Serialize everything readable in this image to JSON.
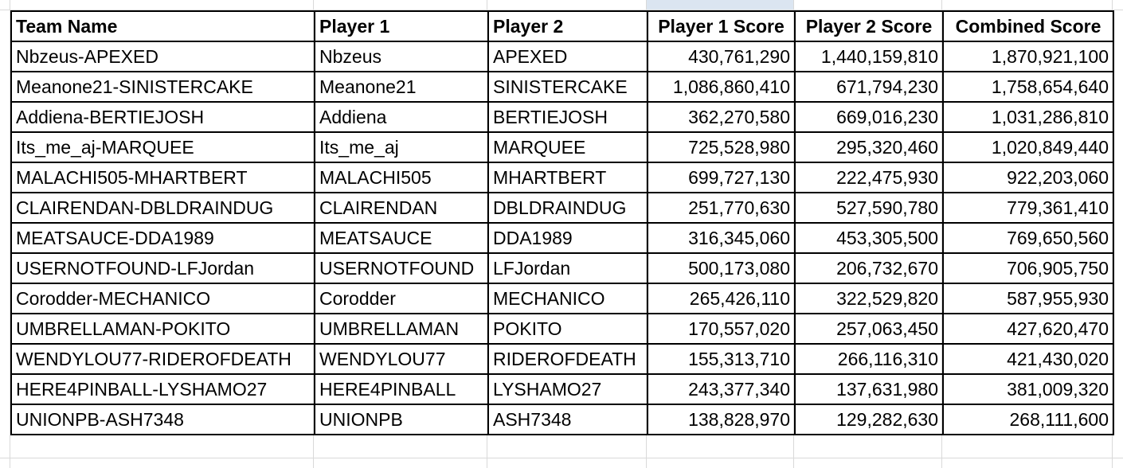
{
  "columns": [
    "Team Name",
    "Player 1",
    "Player 2",
    "Player 1 Score",
    "Player 2 Score",
    "Combined Score"
  ],
  "rows": [
    [
      "Nbzeus-APEXED",
      "Nbzeus",
      "APEXED",
      "430,761,290",
      "1,440,159,810",
      "1,870,921,100"
    ],
    [
      "Meanone21-SINISTERCAKE",
      "Meanone21",
      "SINISTERCAKE",
      "1,086,860,410",
      "671,794,230",
      "1,758,654,640"
    ],
    [
      "Addiena-BERTIEJOSH",
      "Addiena",
      "BERTIEJOSH",
      "362,270,580",
      "669,016,230",
      "1,031,286,810"
    ],
    [
      "Its_me_aj-MARQUEE",
      "Its_me_aj",
      "MARQUEE",
      "725,528,980",
      "295,320,460",
      "1,020,849,440"
    ],
    [
      "MALACHI505-MHARTBERT",
      "MALACHI505",
      "MHARTBERT",
      "699,727,130",
      "222,475,930",
      "922,203,060"
    ],
    [
      "CLAIRENDAN-DBLDRAINDUG",
      "CLAIRENDAN",
      "DBLDRAINDUG",
      "251,770,630",
      "527,590,780",
      "779,361,410"
    ],
    [
      "MEATSAUCE-DDA1989",
      "MEATSAUCE",
      "DDA1989",
      "316,345,060",
      "453,305,500",
      "769,650,560"
    ],
    [
      "USERNOTFOUND-LFJordan",
      "USERNOTFOUND",
      "LFJordan",
      "500,173,080",
      "206,732,670",
      "706,905,750"
    ],
    [
      "Corodder-MECHANICO",
      "Corodder",
      "MECHANICO",
      "265,426,110",
      "322,529,820",
      "587,955,930"
    ],
    [
      "UMBRELLAMAN-POKITO",
      "UMBRELLAMAN",
      "POKITO",
      "170,557,020",
      "257,063,450",
      "427,620,470"
    ],
    [
      "WENDYLOU77-RIDEROFDEATH",
      "WENDYLOU77",
      "RIDEROFDEATH",
      "155,313,710",
      "266,116,310",
      "421,430,020"
    ],
    [
      "HERE4PINBALL-LYSHAMO27",
      "HERE4PINBALL",
      "LYSHAMO27",
      "243,377,340",
      "137,631,980",
      "381,009,320"
    ],
    [
      "UNIONPB-ASH7348",
      "UNIONPB",
      "ASH7348",
      "138,828,970",
      "129,282,630",
      "268,111,600"
    ]
  ]
}
